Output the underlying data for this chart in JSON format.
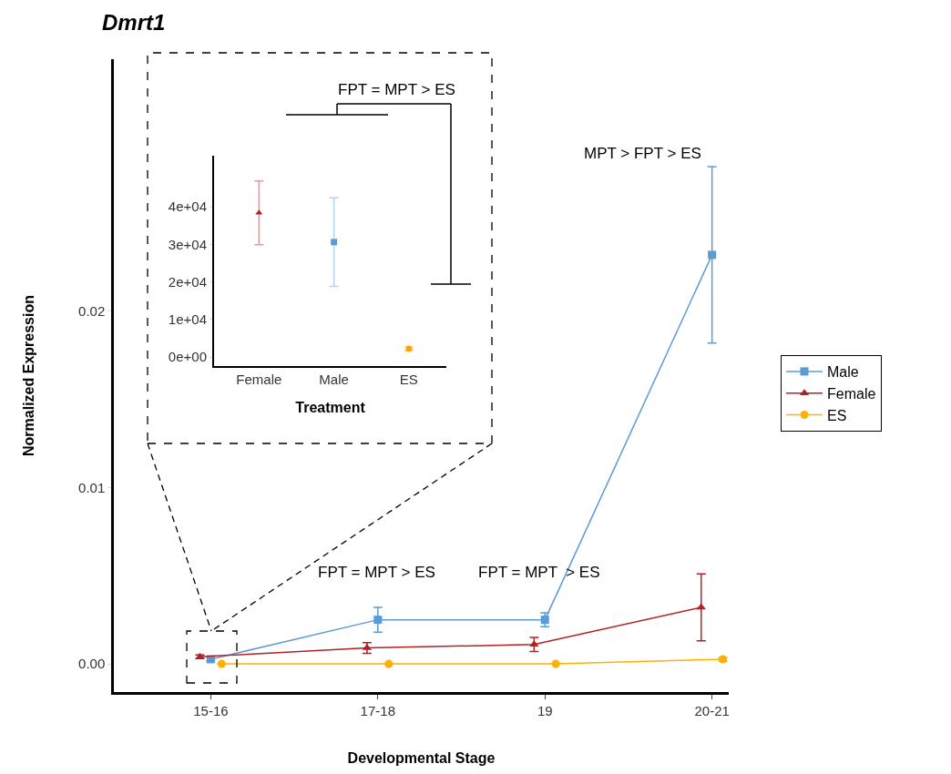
{
  "chart_data": [
    {
      "type": "line",
      "title": "Dmrt1",
      "xlabel": "Developmental Stage",
      "ylabel": "Normalized Expression",
      "categories": [
        "15-16",
        "17-18",
        "19",
        "20-21"
      ],
      "series": [
        {
          "name": "Male",
          "color": "#5b9bd5",
          "marker": "square",
          "values": [
            0.00026,
            0.0025,
            0.0025,
            0.0232
          ],
          "errors": [
            0.0001,
            0.0007,
            0.0004,
            0.005
          ]
        },
        {
          "name": "Female",
          "color": "#b22222",
          "marker": "triangle",
          "values": [
            0.0004,
            0.0009,
            0.0011,
            0.0032
          ],
          "errors": [
            0.0001,
            0.0003,
            0.0004,
            0.0019
          ]
        },
        {
          "name": "ES",
          "color": "#ffb000",
          "marker": "circle",
          "values": [
            0.0,
            0.0,
            0.0,
            0.00026
          ],
          "errors": [
            null,
            null,
            null,
            0.0001
          ]
        }
      ],
      "ylim": [
        -0.0016,
        0.0343
      ],
      "yticks": [
        {
          "value": 0,
          "label": "0.00"
        },
        0.01,
        0.02
      ],
      "legend": "right",
      "annotations": [
        "FPT = MPT > ES",
        "FPT = MPT  > ES",
        "MPT > FPT > ES"
      ]
    },
    {
      "type": "scatter",
      "xlabel": "Treatment",
      "categories": [
        "Female",
        "Male",
        "ES"
      ],
      "series": [
        {
          "color": "#b22222",
          "marker": "triangle",
          "values": [
            38400,
            null,
            null
          ],
          "errors": [
            8500,
            null,
            null
          ]
        },
        {
          "color": "#5b9bd5",
          "marker": "square",
          "values": [
            null,
            30600,
            null
          ],
          "errors": [
            null,
            11800,
            null
          ]
        },
        {
          "color": "#ffa500",
          "marker": "circle",
          "values": [
            null,
            null,
            2200
          ],
          "errors": [
            null,
            null,
            500
          ]
        }
      ],
      "ylim": [
        -2400,
        53600
      ],
      "yticks": [
        {
          "value": 0,
          "label": "0e+00"
        },
        {
          "value": 10000,
          "label": "1e+04"
        },
        {
          "value": 20000,
          "label": "2e+04"
        },
        {
          "value": 30000,
          "label": "3e+04"
        },
        {
          "value": 40000,
          "label": "4e+04"
        }
      ],
      "annotations": [
        "FPT = MPT > ES"
      ]
    }
  ]
}
